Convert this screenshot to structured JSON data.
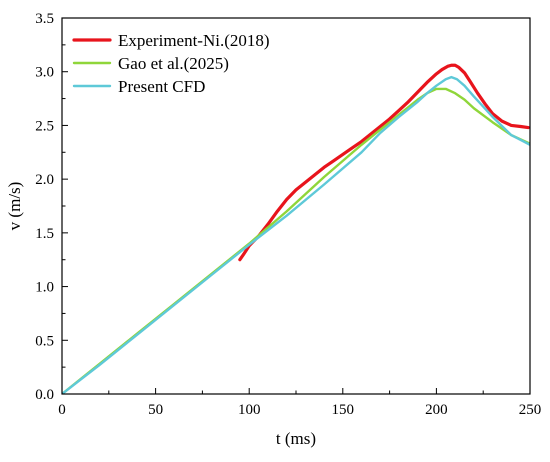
{
  "chart_data": {
    "type": "line",
    "title": "",
    "xlabel": "t (ms)",
    "ylabel": "v (m/s)",
    "xlim": [
      0,
      250
    ],
    "ylim": [
      0,
      3.5
    ],
    "xticks": [
      0,
      50,
      100,
      150,
      200,
      250
    ],
    "yticks": [
      0.0,
      0.5,
      1.0,
      1.5,
      2.0,
      2.5,
      3.0,
      3.5
    ],
    "xtick_labels": [
      "0",
      "50",
      "100",
      "150",
      "200",
      "250"
    ],
    "ytick_labels": [
      "0.0",
      "0.5",
      "1.0",
      "1.5",
      "2.0",
      "2.5",
      "3.0",
      "3.5"
    ],
    "grid": false,
    "legend_position": "top-left",
    "series": [
      {
        "name": "Experiment-Ni.(2018)",
        "color": "#e8141c",
        "x": [
          95,
          97,
          100,
          105,
          110,
          115,
          120,
          125,
          130,
          135,
          140,
          145,
          150,
          155,
          160,
          165,
          170,
          175,
          180,
          185,
          190,
          195,
          200,
          203,
          206,
          208,
          210,
          212,
          215,
          218,
          222,
          226,
          230,
          235,
          240,
          245,
          249
        ],
        "y": [
          1.25,
          1.3,
          1.38,
          1.47,
          1.58,
          1.7,
          1.81,
          1.9,
          1.97,
          2.04,
          2.11,
          2.17,
          2.23,
          2.29,
          2.35,
          2.42,
          2.49,
          2.56,
          2.64,
          2.72,
          2.81,
          2.9,
          2.98,
          3.02,
          3.05,
          3.06,
          3.06,
          3.04,
          2.99,
          2.91,
          2.8,
          2.7,
          2.61,
          2.54,
          2.5,
          2.49,
          2.48
        ]
      },
      {
        "name": "Gao et al.(2025)",
        "color": "#8fd63a",
        "x": [
          0,
          20,
          40,
          60,
          80,
          100,
          120,
          140,
          160,
          170,
          180,
          190,
          195,
          200,
          205,
          210,
          215,
          220,
          230,
          240,
          250
        ],
        "y": [
          0.0,
          0.28,
          0.56,
          0.84,
          1.12,
          1.4,
          1.7,
          2.02,
          2.32,
          2.46,
          2.6,
          2.74,
          2.8,
          2.84,
          2.84,
          2.8,
          2.74,
          2.66,
          2.53,
          2.41,
          2.33
        ]
      },
      {
        "name": "Present CFD",
        "color": "#5ec9d8",
        "x": [
          0,
          20,
          40,
          60,
          80,
          100,
          120,
          140,
          160,
          170,
          180,
          190,
          195,
          200,
          205,
          208,
          211,
          215,
          220,
          230,
          240,
          250
        ],
        "y": [
          0.0,
          0.27,
          0.55,
          0.83,
          1.11,
          1.39,
          1.66,
          1.95,
          2.25,
          2.43,
          2.58,
          2.72,
          2.8,
          2.87,
          2.93,
          2.95,
          2.93,
          2.87,
          2.77,
          2.58,
          2.41,
          2.32
        ]
      }
    ]
  }
}
